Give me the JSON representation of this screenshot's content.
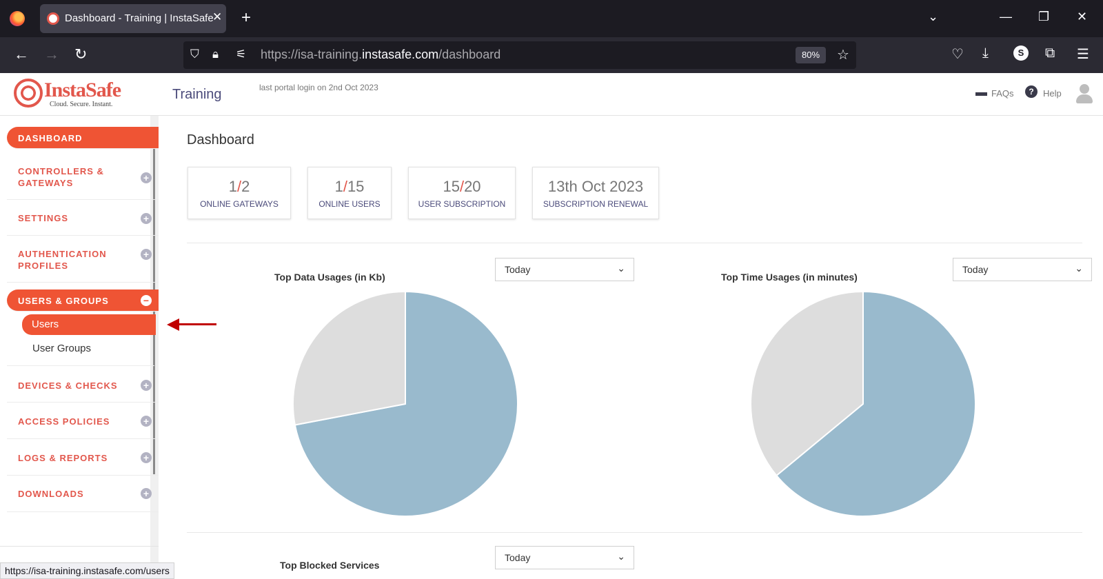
{
  "browser": {
    "tab_title": "Dashboard - Training | InstaSafe",
    "url_prefix": "https://isa-training.",
    "url_host": "instasafe.com",
    "url_path": "/dashboard",
    "zoom": "80%",
    "profile_initial": "S",
    "status_url": "https://isa-training.instasafe.com/users"
  },
  "header": {
    "logo_text": "InstaSafe",
    "logo_tagline": "Cloud. Secure. Instant.",
    "org_name": "Training",
    "last_login": "last portal login on 2nd Oct 2023",
    "faqs": "FAQs",
    "help": "Help"
  },
  "sidebar": {
    "dashboard": "DASHBOARD",
    "controllers_l1": "CONTROLLERS &",
    "controllers_l2": "GATEWAYS",
    "settings": "SETTINGS",
    "auth_l1": "AUTHENTICATION",
    "auth_l2": "PROFILES",
    "users_groups": "USERS & GROUPS",
    "users": "Users",
    "user_groups": "User Groups",
    "devices": "DEVICES & CHECKS",
    "access": "ACCESS POLICIES",
    "logs": "LOGS & REPORTS",
    "downloads": "DOWNLOADS"
  },
  "main": {
    "title": "Dashboard",
    "stats": [
      {
        "current": "1",
        "total": "2",
        "label": "ONLINE GATEWAYS"
      },
      {
        "current": "1",
        "total": "15",
        "label": "ONLINE USERS"
      },
      {
        "current": "15",
        "total": "20",
        "label": "USER SUBSCRIPTION"
      },
      {
        "value": "13th Oct 2023",
        "label": "SUBSCRIPTION RENEWAL"
      }
    ],
    "filter_selected": "Today",
    "chart1_title": "Top Data Usages (in Kb)",
    "chart2_title": "Top Time Usages (in minutes)",
    "chart3_title": "Top Blocked Services"
  },
  "colors": {
    "accent": "#ef5434",
    "pie_primary": "#99bacd",
    "pie_secondary": "#dddddd"
  },
  "pies": [
    {
      "fractions": [
        0.72,
        0.28
      ]
    },
    {
      "fractions": [
        0.64,
        0.36
      ]
    }
  ]
}
